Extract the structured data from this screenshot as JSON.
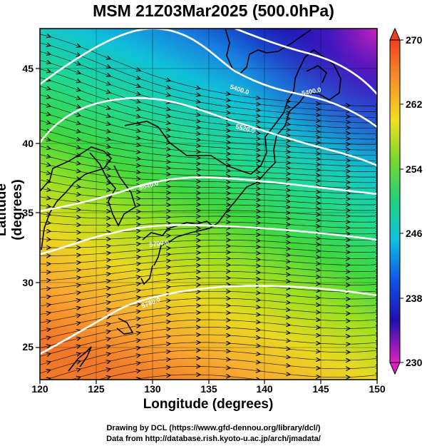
{
  "title": "MSM 21Z03Mar2025 (500.0hPa)",
  "x_axis": {
    "label": "Longitude (degrees)",
    "ticks": [
      "120",
      "125",
      "130",
      "135",
      "140",
      "145",
      "150"
    ]
  },
  "y_axis": {
    "label": "Latitude  (degrees)",
    "ticks": [
      "25",
      "30",
      "35",
      "40",
      "45"
    ]
  },
  "colorbar": {
    "ticks": [
      "270",
      "262",
      "254",
      "246",
      "238",
      "230"
    ]
  },
  "contour_labels": [
    "5400.0",
    "5400.0",
    "5520.0",
    "5640.0",
    "5700.0",
    "5760.0"
  ],
  "credits": {
    "line1": "Drawing by DCL (https://www.gfd-dennou.org/library/dcl/)",
    "line2": "Data from http://database.rish.kyoto-u.ac.jp/arch/jmadata/"
  },
  "colors": {
    "warm": "#f08a28",
    "mid": "#30d860",
    "cool": "#1040d0",
    "coldest": "#e020c0",
    "contour": "#ffffff",
    "coast": "#000000"
  },
  "chart_data": {
    "type": "heatmap",
    "field": "500 hPa temperature (K) with geopotential height contours and wind streamlines",
    "x_range": [
      120,
      150
    ],
    "y_range": [
      22.5,
      48
    ],
    "color_scale": {
      "min": 230,
      "max": 270,
      "ticks": [
        230,
        238,
        246,
        254,
        262,
        270
      ]
    },
    "contour_levels": [
      5400,
      5520,
      5640,
      5700,
      5760,
      5820
    ],
    "grid": true
  }
}
